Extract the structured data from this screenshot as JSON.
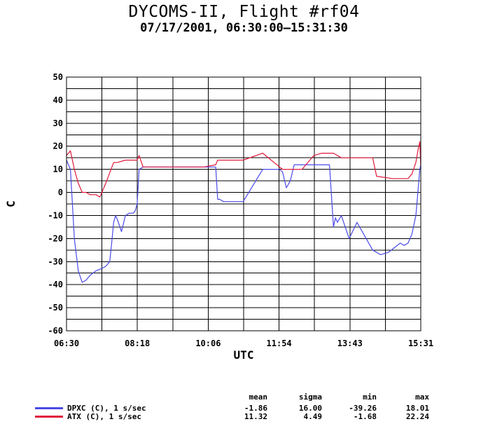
{
  "title": "DYCOMS-II, Flight #rf04",
  "subtitle": "07/17/2001, 06:30:00–15:31:30",
  "chart_data": {
    "type": "line",
    "xlabel": "UTC",
    "ylabel": "C",
    "ylim": [
      -60,
      50
    ],
    "yticks": [
      "50",
      "40",
      "30",
      "20",
      "10",
      "0",
      "-10",
      "-20",
      "-30",
      "-40",
      "-50",
      "-60"
    ],
    "xticks": [
      "06:30",
      "08:18",
      "10:06",
      "11:54",
      "13:43",
      "15:31"
    ],
    "grid": true,
    "series": [
      {
        "name": "DPXC (C), 1 s/sec",
        "color": "#4a4ae8",
        "x_hours": [
          0,
          0.1,
          0.2,
          0.3,
          0.4,
          0.5,
          0.6,
          0.75,
          0.9,
          1.0,
          1.1,
          1.15,
          1.2,
          1.25,
          1.3,
          1.4,
          1.5,
          1.6,
          1.7,
          1.75,
          1.8,
          1.85,
          1.95,
          2.0,
          2.5,
          3.0,
          3.5,
          3.8,
          3.85,
          3.9,
          4.0,
          4.5,
          5.0,
          5.1,
          5.2,
          5.4,
          5.5,
          5.6,
          5.7,
          5.8,
          6.0,
          6.3,
          6.5,
          6.7,
          6.8,
          6.85,
          6.9,
          7.0,
          7.2,
          7.4,
          7.6,
          7.8,
          8.0,
          8.2,
          8.5,
          8.6,
          8.7,
          8.8,
          8.9,
          8.95,
          9.0,
          9.025
        ],
        "values": [
          14,
          10,
          -20,
          -34,
          -39,
          -38,
          -36,
          -34,
          -33,
          -32,
          -30,
          -22,
          -13,
          -10,
          -12,
          -17,
          -10,
          -9,
          -9,
          -8,
          -5,
          10,
          11,
          11,
          11,
          11,
          11,
          11,
          -3,
          -3,
          -4,
          -4,
          10,
          10,
          10,
          10,
          9,
          2,
          5,
          12,
          12,
          12,
          12,
          12,
          -15,
          -11,
          -13,
          -10,
          -20,
          -13,
          -19,
          -25,
          -27,
          -26,
          -22,
          -23,
          -22,
          -18,
          -10,
          0,
          10,
          12
        ]
      },
      {
        "name": "ATX (C), 1 s/sec",
        "color": "#e01a3c",
        "x_hours": [
          0,
          0.1,
          0.2,
          0.3,
          0.4,
          0.5,
          0.6,
          0.75,
          0.85,
          0.95,
          1.0,
          1.2,
          1.3,
          1.5,
          1.8,
          1.85,
          1.95,
          2.0,
          2.5,
          3.0,
          3.5,
          3.8,
          3.85,
          4.0,
          4.5,
          5.0,
          5.5,
          5.8,
          6.0,
          6.3,
          6.5,
          6.8,
          7.0,
          7.3,
          7.8,
          7.9,
          8.3,
          8.4,
          8.7,
          8.8,
          8.9,
          8.95,
          9.0,
          9.025
        ],
        "values": [
          16,
          18,
          10,
          4,
          0,
          0,
          -1,
          -1,
          -2,
          2,
          4,
          13,
          13,
          14,
          14,
          16,
          11,
          11,
          11,
          11,
          11,
          12,
          14,
          14,
          14,
          17,
          10,
          10,
          10,
          16,
          17,
          17,
          15,
          15,
          15,
          7,
          6,
          6,
          6,
          8,
          13,
          18,
          22,
          11
        ]
      }
    ]
  },
  "stats": {
    "headers": [
      "mean",
      "sigma",
      "min",
      "max"
    ],
    "rows": [
      {
        "name": "DPXC (C), 1 s/sec",
        "color": "#4a4ae8",
        "mean": "-1.86",
        "sigma": "16.00",
        "min": "-39.26",
        "max": "18.01"
      },
      {
        "name": "ATX (C), 1 s/sec",
        "color": "#e01a3c",
        "mean": "11.32",
        "sigma": "4.49",
        "min": "-1.68",
        "max": "22.24"
      }
    ]
  }
}
